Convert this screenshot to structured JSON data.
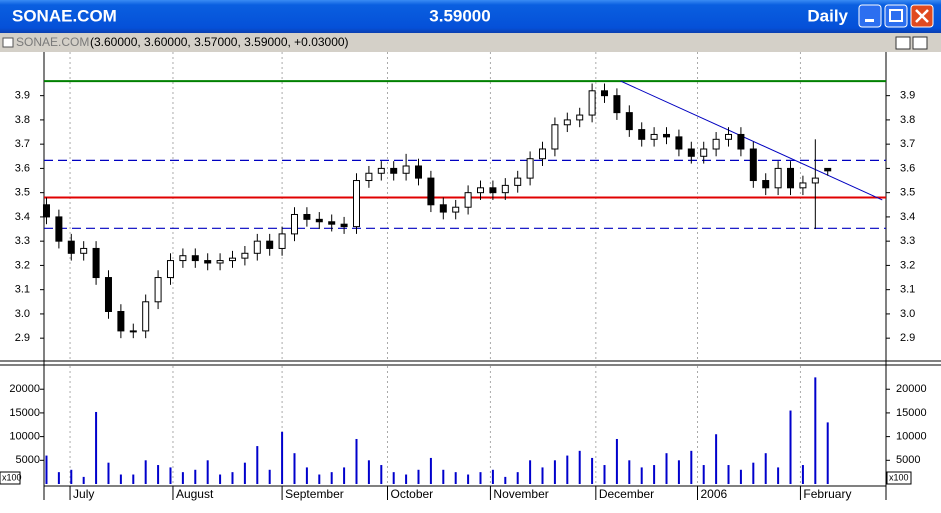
{
  "window": {
    "symbol": "SONAE.COM",
    "price": "3.59000",
    "period": "Daily",
    "sub_symbol": "SONAE.COM",
    "ohlc_text": "(3.60000, 3.60000, 3.57000, 3.59000, +0.03000)",
    "volume_unit": "x100"
  },
  "chart_data": [
    {
      "type": "candlestick",
      "x": [
        0,
        1,
        2,
        3,
        4,
        5,
        6,
        7,
        8,
        9,
        10,
        11,
        12,
        13,
        14,
        15,
        16,
        17,
        18,
        19,
        20,
        21,
        22,
        23,
        24,
        25,
        26,
        27,
        28,
        29,
        30,
        31,
        32,
        33,
        34,
        35,
        36,
        37,
        38,
        39,
        40,
        41,
        42,
        43,
        44,
        45,
        46,
        47,
        48,
        49,
        50,
        51,
        52,
        53,
        54,
        55,
        56,
        57,
        58,
        59,
        60,
        61,
        62,
        63
      ],
      "open": [
        3.45,
        3.4,
        3.3,
        3.25,
        3.27,
        3.15,
        3.01,
        2.93,
        2.93,
        3.05,
        3.15,
        3.22,
        3.24,
        3.22,
        3.21,
        3.22,
        3.23,
        3.25,
        3.3,
        3.27,
        3.33,
        3.41,
        3.39,
        3.38,
        3.37,
        3.36,
        3.55,
        3.58,
        3.6,
        3.58,
        3.61,
        3.56,
        3.45,
        3.42,
        3.44,
        3.5,
        3.52,
        3.5,
        3.53,
        3.56,
        3.64,
        3.68,
        3.78,
        3.8,
        3.82,
        3.92,
        3.9,
        3.83,
        3.76,
        3.72,
        3.74,
        3.73,
        3.68,
        3.65,
        3.68,
        3.72,
        3.74,
        3.68,
        3.55,
        3.52,
        3.6,
        3.52,
        3.54,
        3.6
      ],
      "high": [
        3.48,
        3.43,
        3.33,
        3.3,
        3.3,
        3.18,
        3.04,
        2.96,
        3.08,
        3.18,
        3.25,
        3.27,
        3.27,
        3.25,
        3.25,
        3.26,
        3.28,
        3.33,
        3.33,
        3.36,
        3.44,
        3.44,
        3.42,
        3.41,
        3.4,
        3.58,
        3.61,
        3.63,
        3.63,
        3.66,
        3.64,
        3.59,
        3.48,
        3.47,
        3.53,
        3.55,
        3.55,
        3.56,
        3.59,
        3.67,
        3.71,
        3.81,
        3.83,
        3.85,
        3.95,
        3.95,
        3.93,
        3.86,
        3.79,
        3.77,
        3.77,
        3.76,
        3.71,
        3.71,
        3.75,
        3.77,
        3.77,
        3.71,
        3.58,
        3.63,
        3.63,
        3.57,
        3.72,
        3.6
      ],
      "low": [
        3.37,
        3.27,
        3.22,
        3.22,
        3.12,
        2.98,
        2.9,
        2.9,
        2.9,
        3.02,
        3.12,
        3.19,
        3.19,
        3.18,
        3.18,
        3.19,
        3.2,
        3.22,
        3.24,
        3.24,
        3.3,
        3.36,
        3.35,
        3.34,
        3.33,
        3.33,
        3.52,
        3.55,
        3.55,
        3.55,
        3.53,
        3.42,
        3.39,
        3.39,
        3.41,
        3.47,
        3.47,
        3.47,
        3.5,
        3.53,
        3.61,
        3.65,
        3.75,
        3.77,
        3.79,
        3.87,
        3.8,
        3.73,
        3.69,
        3.69,
        3.7,
        3.65,
        3.62,
        3.62,
        3.65,
        3.69,
        3.65,
        3.52,
        3.49,
        3.49,
        3.49,
        3.49,
        3.35,
        3.57
      ],
      "close": [
        3.4,
        3.3,
        3.25,
        3.27,
        3.15,
        3.01,
        2.93,
        2.93,
        3.05,
        3.15,
        3.22,
        3.24,
        3.22,
        3.21,
        3.22,
        3.23,
        3.25,
        3.3,
        3.27,
        3.33,
        3.41,
        3.39,
        3.38,
        3.37,
        3.36,
        3.55,
        3.58,
        3.6,
        3.58,
        3.61,
        3.56,
        3.45,
        3.42,
        3.44,
        3.5,
        3.52,
        3.5,
        3.53,
        3.56,
        3.64,
        3.68,
        3.78,
        3.8,
        3.82,
        3.92,
        3.9,
        3.83,
        3.76,
        3.72,
        3.74,
        3.73,
        3.68,
        3.65,
        3.68,
        3.72,
        3.74,
        3.68,
        3.55,
        3.52,
        3.6,
        3.52,
        3.54,
        3.56,
        3.59
      ],
      "xlim": [
        -0.2,
        67.7
      ],
      "xticks": [
        {
          "value": 1.9,
          "label": "July"
        },
        {
          "value": 10.2,
          "label": "August"
        },
        {
          "value": 19.0,
          "label": "September"
        },
        {
          "value": 27.5,
          "label": "October"
        },
        {
          "value": 35.8,
          "label": "November"
        },
        {
          "value": 44.3,
          "label": "December"
        },
        {
          "value": 52.5,
          "label": "2006"
        },
        {
          "value": 60.8,
          "label": "February"
        }
      ],
      "ylim": [
        2.81,
        4.08
      ],
      "yticks": [
        2.9,
        {
          "value": 3,
          "label": "3.0"
        },
        3.1,
        3.2,
        3.3,
        3.4,
        3.5,
        3.6,
        3.7,
        3.8,
        3.9
      ],
      "hlines": [
        {
          "y": 3.96,
          "color": "#008000",
          "style": "solid"
        },
        {
          "y": 3.48,
          "color": "#e00000",
          "style": "solid"
        },
        {
          "y": 3.633,
          "color": "#0000c0",
          "style": "dashed"
        },
        {
          "y": 3.353,
          "color": "#0000c0",
          "style": "dashed"
        }
      ],
      "trendline": {
        "x": [
          46.3,
          67.4
        ],
        "y": [
          3.96,
          3.47
        ],
        "color": "#0000c0"
      },
      "grid": true
    },
    {
      "type": "bar",
      "values": [
        6000,
        2500,
        3000,
        1500,
        15200,
        4500,
        2000,
        2000,
        5000,
        4000,
        3500,
        2500,
        3000,
        5000,
        2000,
        2500,
        4500,
        8000,
        3000,
        11000,
        6500,
        3500,
        2000,
        2500,
        3500,
        9500,
        5000,
        4000,
        2500,
        2000,
        3000,
        5500,
        3000,
        2500,
        2000,
        2500,
        3000,
        1500,
        2500,
        5000,
        3500,
        5000,
        6000,
        7000,
        5500,
        4000,
        9500,
        5000,
        3500,
        4000,
        6500,
        5000,
        7000,
        4000,
        10500,
        4000,
        3000,
        4500,
        6500,
        3500,
        15500,
        4000,
        22500,
        13000
      ],
      "color": "#0000cc",
      "ylim": [
        0,
        24900
      ],
      "yticks": [
        5000,
        10000,
        15000,
        20000
      ]
    }
  ]
}
